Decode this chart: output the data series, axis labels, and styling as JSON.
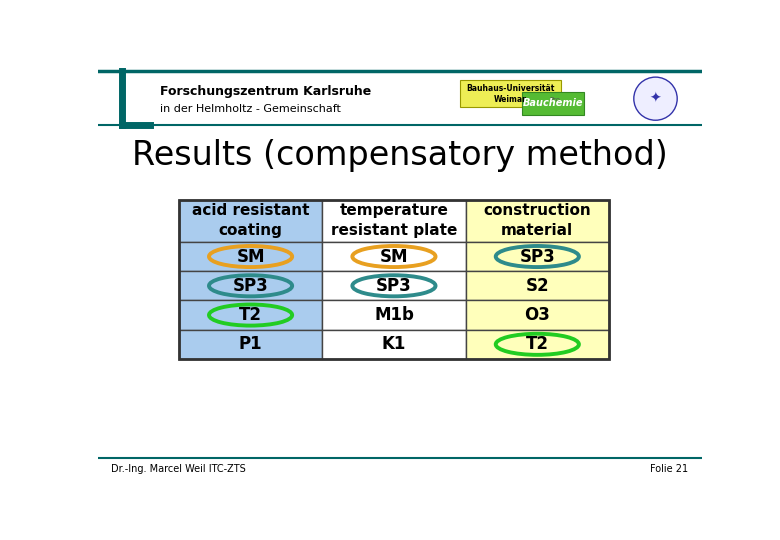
{
  "title": "Results (compensatory method)",
  "header_line1": "Forschungszentrum Karlsruhe",
  "header_line2": "in der Helmholtz - Gemeinschaft",
  "footer_left": "Dr.-Ing. Marcel Weil ITC-ZTS",
  "footer_right": "Folie 21",
  "columns": [
    "acid resistant\ncoating",
    "temperature\nresistant plate",
    "construction\nmaterial"
  ],
  "col_colors": [
    "#aaccee",
    "#ffffff",
    "#ffffbb"
  ],
  "rows": [
    [
      "SM",
      "SM",
      "SP3"
    ],
    [
      "SP3",
      "SP3",
      "S2"
    ],
    [
      "T2",
      "M1b",
      "O3"
    ],
    [
      "P1",
      "K1",
      "T2"
    ]
  ],
  "ellipse_annotations": {
    "0,0": "orange",
    "0,1": "orange",
    "1,0": "teal",
    "1,1": "teal",
    "2,0": "green",
    "0,2": "teal",
    "3,2": "green"
  },
  "teal_color": "#2e8b8b",
  "orange_color": "#e8a020",
  "green_color": "#22cc22",
  "teal_header": "#006666",
  "bg_color": "#ffffff",
  "title_fontsize": 24,
  "cell_fontsize": 12,
  "header_cell_fontsize": 11
}
